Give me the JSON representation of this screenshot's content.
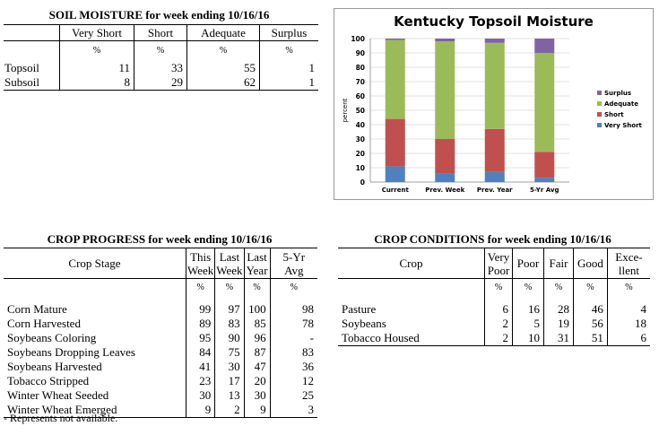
{
  "soil": {
    "title": "SOIL MOISTURE for week ending 10/16/16",
    "headers": [
      "Very Short",
      "Short",
      "Adequate",
      "Surplus"
    ],
    "unit": "%",
    "rows": [
      {
        "label": "Topsoil",
        "values": [
          "11",
          "33",
          "55",
          "1"
        ]
      },
      {
        "label": "Subsoil",
        "values": [
          "8",
          "29",
          "62",
          "1"
        ]
      }
    ]
  },
  "chart_data": {
    "type": "bar",
    "stacked": true,
    "title": "Kentucky Topsoil Moisture",
    "ylabel": "percent",
    "xlabel": "",
    "ylim": [
      0,
      100
    ],
    "yticks": [
      0,
      10,
      20,
      30,
      40,
      50,
      60,
      70,
      80,
      90,
      100
    ],
    "categories": [
      "Current",
      "Prev. Week",
      "Prev. Year",
      "5-Yr Avg"
    ],
    "series": [
      {
        "name": "Very Short",
        "color": "#4f81bd",
        "values": [
          11,
          6,
          7,
          3
        ]
      },
      {
        "name": "Short",
        "color": "#c0504d",
        "values": [
          33,
          24,
          30,
          18
        ]
      },
      {
        "name": "Adequate",
        "color": "#9bbb59",
        "values": [
          55,
          68,
          60,
          69
        ]
      },
      {
        "name": "Surplus",
        "color": "#8064a2",
        "values": [
          1,
          2,
          3,
          10
        ]
      }
    ],
    "legend_position": "right",
    "legend_order": [
      "Surplus",
      "Adequate",
      "Short",
      "Very Short"
    ],
    "grid": true
  },
  "progress": {
    "title": "CROP PROGRESS for week ending 10/16/16",
    "stage_header": "Crop Stage",
    "headers": [
      [
        "This",
        "Week"
      ],
      [
        "Last",
        "Week"
      ],
      [
        "Last",
        "Year"
      ],
      [
        "5-Yr",
        "Avg"
      ]
    ],
    "unit": "%",
    "rows": [
      {
        "label": "Corn Mature",
        "values": [
          "99",
          "97",
          "100",
          "98"
        ]
      },
      {
        "label": "Corn Harvested",
        "values": [
          "89",
          "83",
          "85",
          "78"
        ]
      },
      {
        "label": "Soybeans Coloring",
        "values": [
          "95",
          "90",
          "96",
          "-"
        ]
      },
      {
        "label": "Soybeans Dropping Leaves",
        "values": [
          "84",
          "75",
          "87",
          "83"
        ]
      },
      {
        "label": "Soybeans Harvested",
        "values": [
          "41",
          "30",
          "47",
          "36"
        ]
      },
      {
        "label": "Tobacco Stripped",
        "values": [
          "23",
          "17",
          "20",
          "12"
        ]
      },
      {
        "label": "Winter Wheat Seeded",
        "values": [
          "30",
          "13",
          "30",
          "25"
        ]
      },
      {
        "label": "Winter Wheat Emerged",
        "values": [
          "9",
          "2",
          "9",
          "3"
        ]
      }
    ],
    "footnote": "- Represents not available."
  },
  "conditions": {
    "title": "CROP CONDITIONS for week ending 10/16/16",
    "crop_header": "Crop",
    "headers": [
      [
        "Very",
        "Poor"
      ],
      [
        "Poor"
      ],
      [
        "Fair"
      ],
      [
        "Good"
      ],
      [
        "Exce-",
        "llent"
      ]
    ],
    "unit": "%",
    "rows": [
      {
        "label": "Pasture",
        "values": [
          "6",
          "16",
          "28",
          "46",
          "4"
        ]
      },
      {
        "label": "Soybeans",
        "values": [
          "2",
          "5",
          "19",
          "56",
          "18"
        ]
      },
      {
        "label": "Tobacco Housed",
        "values": [
          "2",
          "10",
          "31",
          "51",
          "6"
        ]
      }
    ]
  }
}
